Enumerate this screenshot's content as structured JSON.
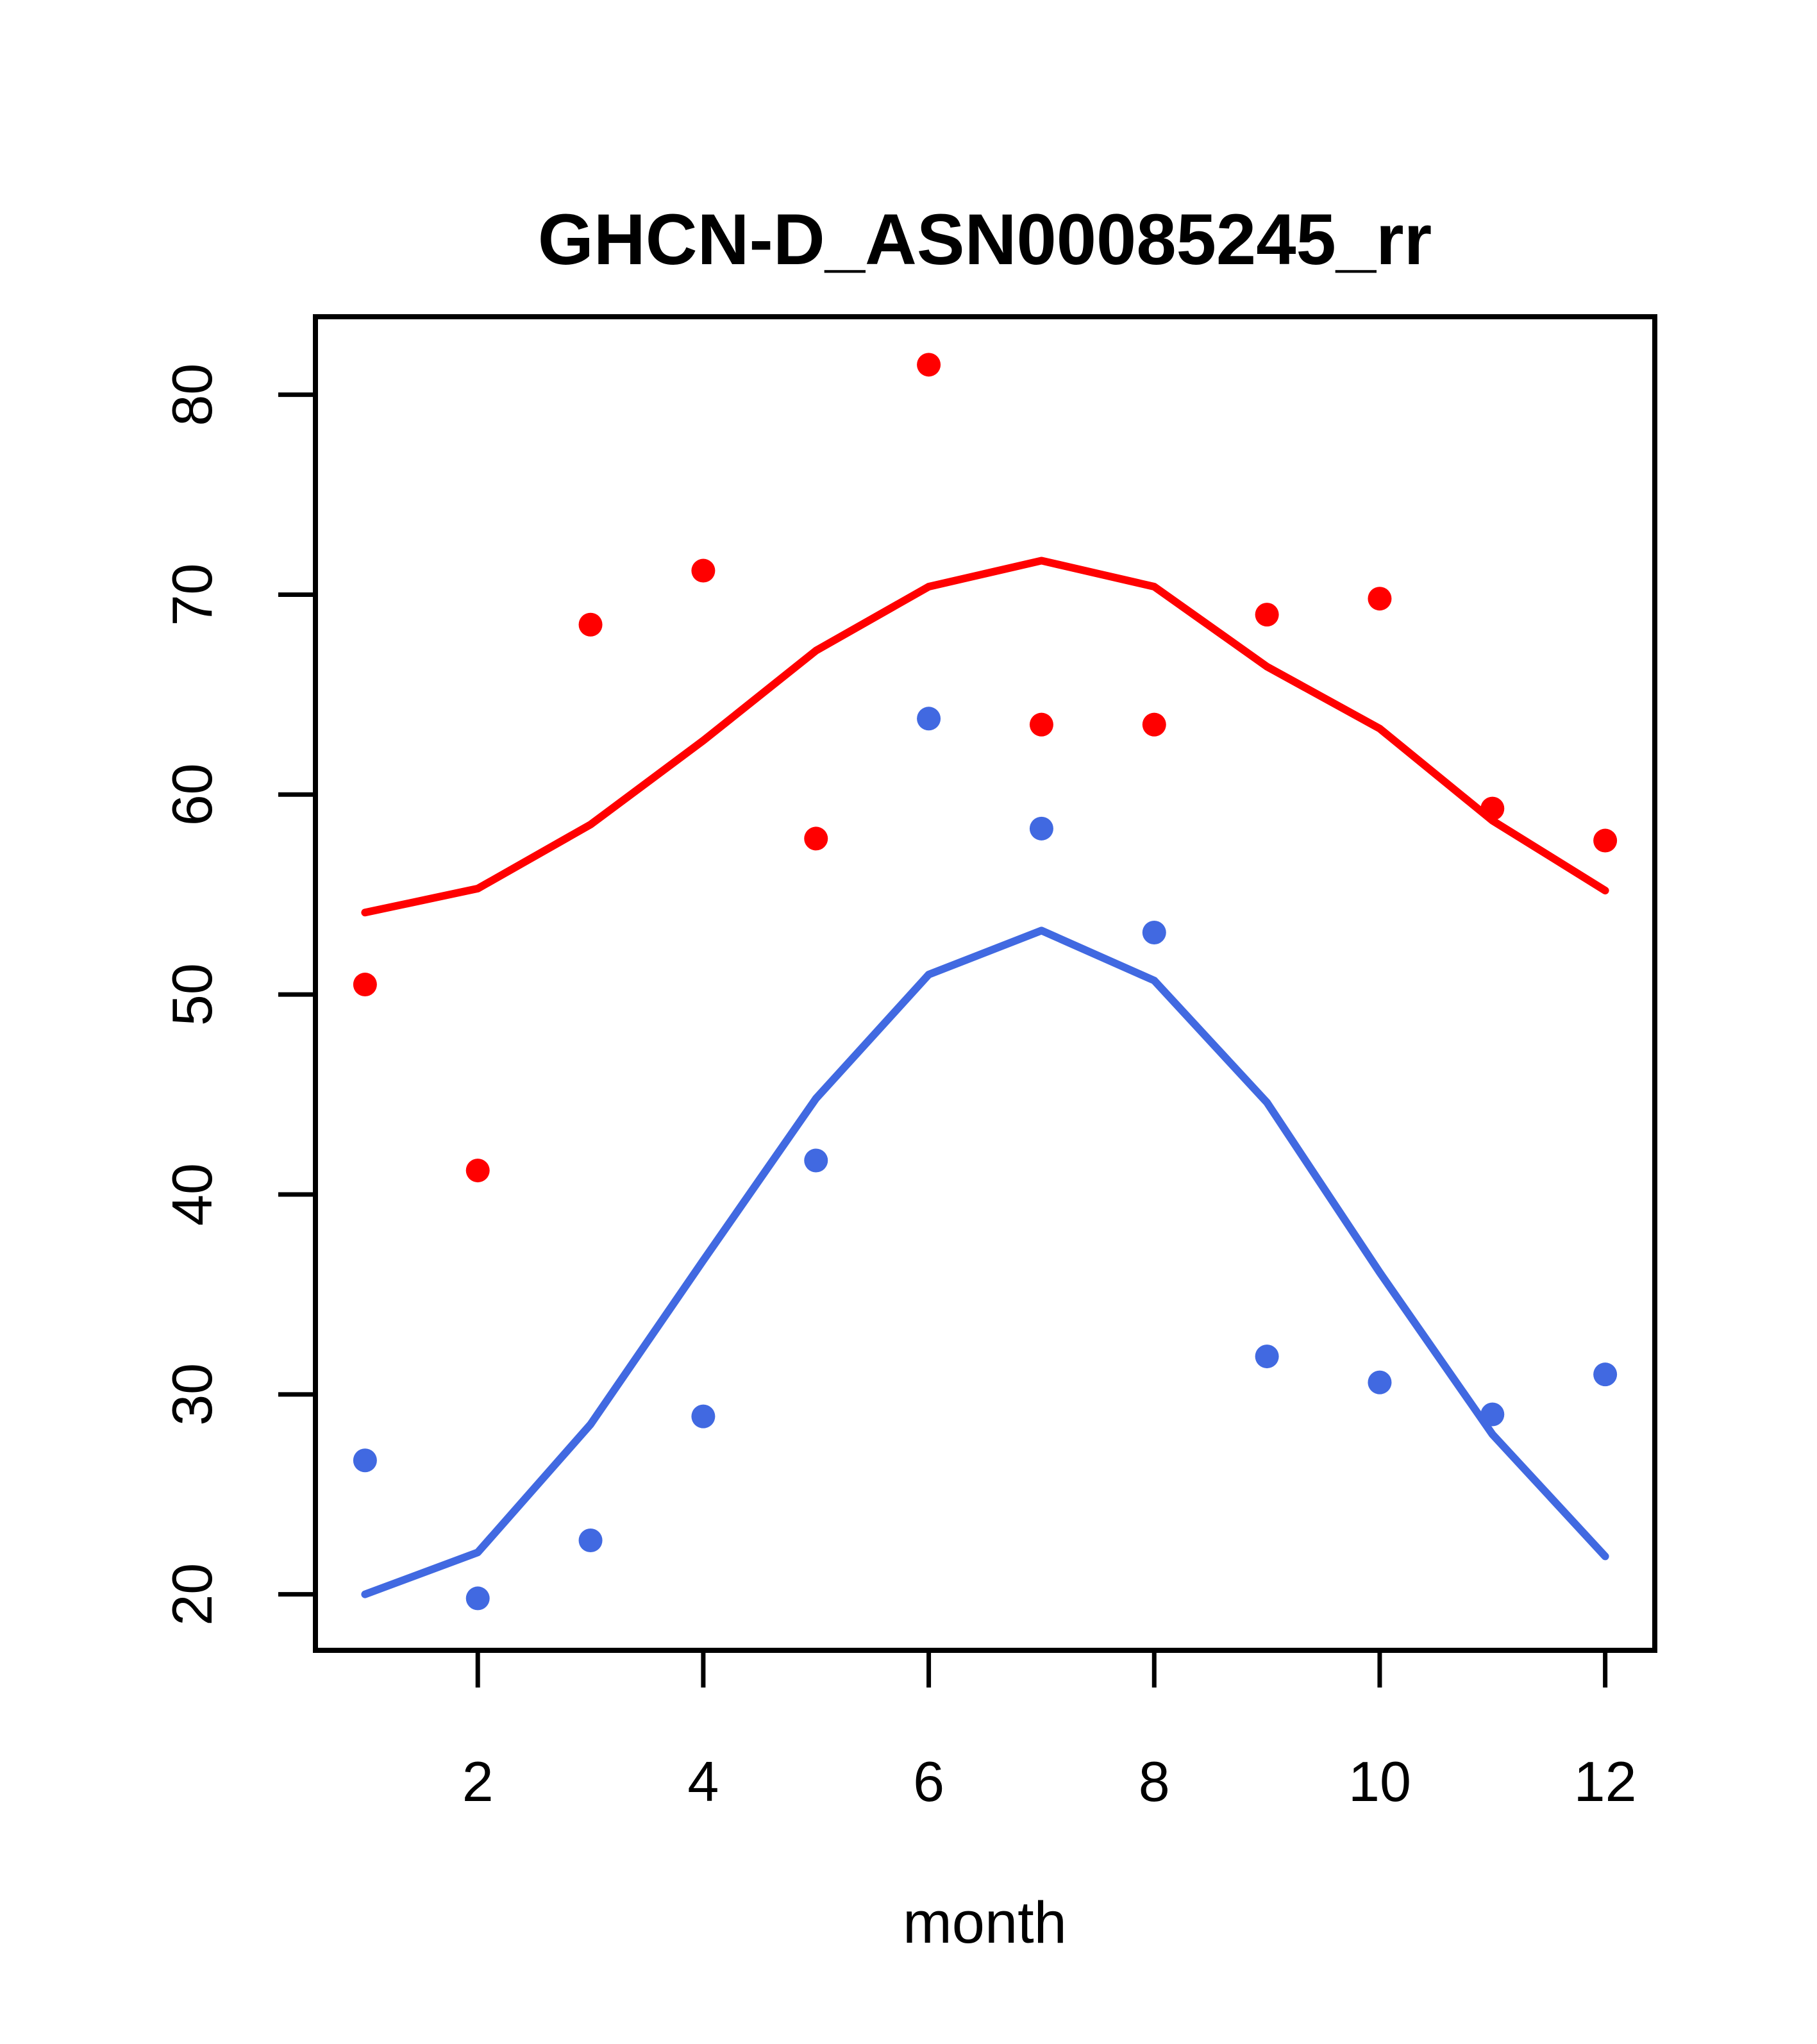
{
  "title": "GHCN-D_ASN00085245_rr",
  "xlabel": "month",
  "colors": {
    "red_series": "#ff0000",
    "blue_series": "#4169e1",
    "axis": "#000000",
    "background": "#ffffff"
  },
  "chart_data": {
    "type": "scatter",
    "title": "GHCN-D_ASN00085245_rr",
    "xlabel": "month",
    "ylabel": "",
    "x": [
      1,
      2,
      3,
      4,
      5,
      6,
      7,
      8,
      9,
      10,
      11,
      12
    ],
    "x_ticks": [
      2,
      4,
      6,
      8,
      10,
      12
    ],
    "y_ticks": [
      20,
      30,
      40,
      50,
      60,
      70,
      80
    ],
    "xlim": [
      0.56,
      12.44
    ],
    "ylim": [
      17.2,
      83.9
    ],
    "grid": false,
    "legend": "none",
    "series": [
      {
        "name": "red points",
        "type": "scatter",
        "color": "#ff0000",
        "values": [
          50.5,
          41.2,
          68.5,
          71.2,
          57.8,
          81.5,
          63.5,
          63.5,
          69.0,
          69.8,
          59.3,
          57.7
        ]
      },
      {
        "name": "blue points",
        "type": "scatter",
        "color": "#4169e1",
        "values": [
          26.7,
          19.8,
          22.7,
          28.9,
          41.7,
          63.8,
          58.3,
          53.1,
          31.9,
          30.6,
          29.0,
          31.0
        ]
      },
      {
        "name": "red line",
        "type": "line",
        "color": "#ff0000",
        "values": [
          54.1,
          55.3,
          58.5,
          62.7,
          67.2,
          70.4,
          71.7,
          70.4,
          66.4,
          63.3,
          58.7,
          55.2
        ]
      },
      {
        "name": "blue line",
        "type": "line",
        "color": "#4169e1",
        "values": [
          20.0,
          22.1,
          28.5,
          36.7,
          44.8,
          51.0,
          53.2,
          50.7,
          44.6,
          36.1,
          28.0,
          21.9
        ]
      }
    ]
  }
}
